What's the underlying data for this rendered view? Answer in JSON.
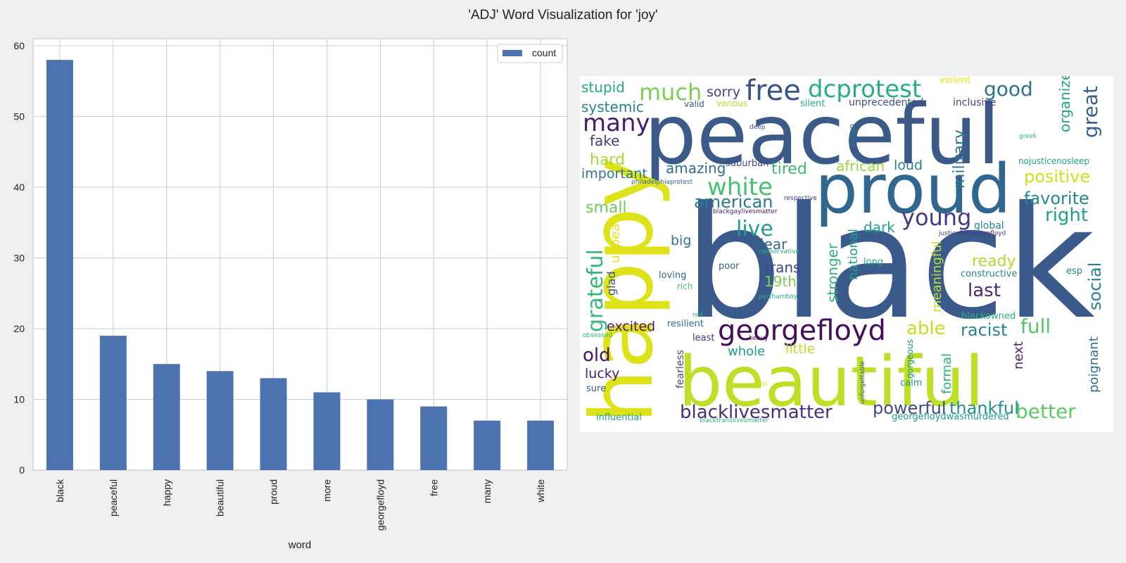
{
  "figure": {
    "title": "'ADJ' Word Visualization for 'joy'"
  },
  "chart_data": [
    {
      "type": "bar",
      "xlabel": "word",
      "ylabel": "",
      "categories": [
        "black",
        "peaceful",
        "happy",
        "beautiful",
        "proud",
        "more",
        "georgefloyd",
        "free",
        "many",
        "white"
      ],
      "series": [
        {
          "name": "count",
          "values": [
            58,
            19,
            15,
            14,
            13,
            11,
            10,
            9,
            7,
            7
          ]
        }
      ],
      "ylim": [
        0,
        61
      ],
      "yticks": [
        0,
        10,
        20,
        30,
        40,
        50,
        60
      ],
      "grid": true,
      "legend": "top-right",
      "bar_color": "#4c72b0"
    },
    {
      "type": "wordcloud",
      "background": "#ffffff",
      "words": [
        {
          "text": "black",
          "weight": 58,
          "color": "#3a5a8c"
        },
        {
          "text": "peaceful",
          "weight": 19,
          "color": "#3b5a88"
        },
        {
          "text": "happy",
          "weight": 15,
          "color": "#dde318"
        },
        {
          "text": "beautiful",
          "weight": 14,
          "color": "#bddf26"
        },
        {
          "text": "proud",
          "weight": 13,
          "color": "#31678e"
        },
        {
          "text": "georgefloyd",
          "weight": 10,
          "color": "#440f5c"
        },
        {
          "text": "free",
          "weight": 9,
          "color": "#3a528b"
        },
        {
          "text": "dcprotest",
          "weight": 8,
          "color": "#29af7f"
        },
        {
          "text": "white",
          "weight": 7,
          "color": "#4ac16d"
        },
        {
          "text": "many",
          "weight": 7,
          "color": "#481b6d"
        },
        {
          "text": "much",
          "weight": 7,
          "color": "#7ad151"
        },
        {
          "text": "good",
          "weight": 6,
          "color": "#2c728e"
        },
        {
          "text": "great",
          "weight": 6,
          "color": "#34618d"
        },
        {
          "text": "blacklivesmatter",
          "weight": 6,
          "color": "#472f7d"
        },
        {
          "text": "young",
          "weight": 6,
          "color": "#443a83"
        },
        {
          "text": "grateful",
          "weight": 6,
          "color": "#35b779"
        },
        {
          "text": "better",
          "weight": 5,
          "color": "#5ec962"
        },
        {
          "text": "thankful",
          "weight": 5,
          "color": "#21918c"
        },
        {
          "text": "powerful",
          "weight": 5,
          "color": "#3e4989"
        },
        {
          "text": "live",
          "weight": 5,
          "color": "#1f9e89"
        },
        {
          "text": "american",
          "weight": 5,
          "color": "#2a788e"
        },
        {
          "text": "full",
          "weight": 5,
          "color": "#52c569"
        },
        {
          "text": "last",
          "weight": 5,
          "color": "#482878"
        },
        {
          "text": "able",
          "weight": 5,
          "color": "#c2df23"
        },
        {
          "text": "racist",
          "weight": 5,
          "color": "#25848e"
        },
        {
          "text": "positive",
          "weight": 5,
          "color": "#d0e11c"
        },
        {
          "text": "favorite",
          "weight": 5,
          "color": "#23898e"
        },
        {
          "text": "right",
          "weight": 5,
          "color": "#1fa187"
        },
        {
          "text": "social",
          "weight": 5,
          "color": "#277f8e"
        },
        {
          "text": "old",
          "weight": 5,
          "color": "#471365"
        },
        {
          "text": "stupid",
          "weight": 4,
          "color": "#22a884"
        },
        {
          "text": "systemic",
          "weight": 4,
          "color": "#26828e"
        },
        {
          "text": "fake",
          "weight": 4,
          "color": "#433e85"
        },
        {
          "text": "hard",
          "weight": 4,
          "color": "#a5db36"
        },
        {
          "text": "important",
          "weight": 4,
          "color": "#2a778e"
        },
        {
          "text": "small",
          "weight": 4,
          "color": "#6ccd5a"
        },
        {
          "text": "amazing",
          "weight": 4,
          "color": "#2e6f8e"
        },
        {
          "text": "tired",
          "weight": 4,
          "color": "#3bbb75"
        },
        {
          "text": "african",
          "weight": 4,
          "color": "#95d840"
        },
        {
          "text": "loud",
          "weight": 4,
          "color": "#287c8e"
        },
        {
          "text": "sorry",
          "weight": 4,
          "color": "#404588"
        },
        {
          "text": "military",
          "weight": 4,
          "color": "#2d718e"
        },
        {
          "text": "organized",
          "weight": 4,
          "color": "#21a685"
        },
        {
          "text": "dark",
          "weight": 4,
          "color": "#1fa088"
        },
        {
          "text": "clear",
          "weight": 4,
          "color": "#33638d"
        },
        {
          "text": "trans",
          "weight": 4,
          "color": "#3f4788"
        },
        {
          "text": "19th",
          "weight": 4,
          "color": "#7ad151"
        },
        {
          "text": "ready",
          "weight": 4,
          "color": "#addc30"
        },
        {
          "text": "stronger",
          "weight": 4,
          "color": "#2fb47c"
        },
        {
          "text": "national",
          "weight": 4,
          "color": "#20a386"
        },
        {
          "text": "meaningful",
          "weight": 4,
          "color": "#c0df25"
        },
        {
          "text": "excited",
          "weight": 4,
          "color": "#481769"
        },
        {
          "text": "little",
          "weight": 4,
          "color": "#bddf26"
        },
        {
          "text": "whole",
          "weight": 4,
          "color": "#1e9c89"
        },
        {
          "text": "lucky",
          "weight": 4,
          "color": "#482173"
        },
        {
          "text": "upbeat",
          "weight": 4,
          "color": "#e5e419"
        },
        {
          "text": "big",
          "weight": 4,
          "color": "#2b758e"
        },
        {
          "text": "glad",
          "weight": 4,
          "color": "#39558c"
        },
        {
          "text": "next",
          "weight": 4,
          "color": "#481c6e"
        },
        {
          "text": "formal",
          "weight": 4,
          "color": "#29af7f"
        },
        {
          "text": "poignant",
          "weight": 4,
          "color": "#2d708e"
        },
        {
          "text": "global",
          "weight": 3,
          "color": "#25848e"
        },
        {
          "text": "unprecedented",
          "weight": 3,
          "color": "#3d4d8a"
        },
        {
          "text": "inclusive",
          "weight": 3,
          "color": "#404387"
        },
        {
          "text": "violent",
          "weight": 3,
          "color": "#e5e419"
        },
        {
          "text": "silent",
          "weight": 3,
          "color": "#29af7f"
        },
        {
          "text": "various",
          "weight": 3,
          "color": "#b5de2b"
        },
        {
          "text": "valid",
          "weight": 3,
          "color": "#39568c"
        },
        {
          "text": "clean",
          "weight": 3,
          "color": "#2a788e"
        },
        {
          "text": "deep",
          "weight": 2,
          "color": "#3b528b"
        },
        {
          "text": "greek",
          "weight": 2,
          "color": "#35b779"
        },
        {
          "text": "nojusticenosleep",
          "weight": 3,
          "color": "#1fa187"
        },
        {
          "text": "suburban",
          "weight": 3,
          "color": "#414487"
        },
        {
          "text": "philadelphiaprotest",
          "weight": 2,
          "color": "#33638d"
        },
        {
          "text": "respective",
          "weight": 2,
          "color": "#453581"
        },
        {
          "text": "blackgaylivesmatter",
          "weight": 2,
          "color": "#482475"
        },
        {
          "text": "justiceforgeorgefloyd",
          "weight": 2,
          "color": "#453781"
        },
        {
          "text": "conservative",
          "weight": 2,
          "color": "#2db27d"
        },
        {
          "text": "long",
          "weight": 3,
          "color": "#22a884"
        },
        {
          "text": "poor",
          "weight": 3,
          "color": "#375b8d"
        },
        {
          "text": "loving",
          "weight": 3,
          "color": "#31688e"
        },
        {
          "text": "rich",
          "weight": 3,
          "color": "#4ec36b"
        },
        {
          "text": "constructive",
          "weight": 3,
          "color": "#26828e"
        },
        {
          "text": "esp",
          "weight": 3,
          "color": "#26828e"
        },
        {
          "text": "perthamboy",
          "weight": 2,
          "color": "#25ac82"
        },
        {
          "text": "red",
          "weight": 2,
          "color": "#2db27d"
        },
        {
          "text": "blackowned",
          "weight": 3,
          "color": "#2ab07f"
        },
        {
          "text": "resilient",
          "weight": 3,
          "color": "#306a8e"
        },
        {
          "text": "least",
          "weight": 3,
          "color": "#46327e"
        },
        {
          "text": "heavy",
          "weight": 2,
          "color": "#471063"
        },
        {
          "text": "obsessed",
          "weight": 2,
          "color": "#35b779"
        },
        {
          "text": "fearless",
          "weight": 3,
          "color": "#3e4a89"
        },
        {
          "text": "unforgettable",
          "weight": 2,
          "color": "#38588c"
        },
        {
          "text": "gorgeous",
          "weight": 3,
          "color": "#21918c"
        },
        {
          "text": "calm",
          "weight": 3,
          "color": "#1f968b"
        },
        {
          "text": "sure",
          "weight": 3,
          "color": "#3a548c"
        },
        {
          "text": "odus",
          "weight": 2,
          "color": "#dde318"
        },
        {
          "text": "influential",
          "weight": 3,
          "color": "#1fa088"
        },
        {
          "text": "blacktranslivesmatter",
          "weight": 2,
          "color": "#2fb47c"
        },
        {
          "text": "georgefloydwasmurdered",
          "weight": 3,
          "color": "#1e9b8a"
        }
      ]
    }
  ]
}
